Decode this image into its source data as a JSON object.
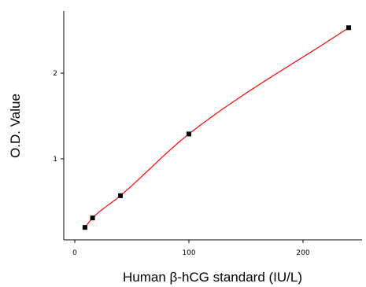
{
  "chart_data": {
    "type": "scatter",
    "title": "",
    "xlabel": "Human β-hCG standard (IU/L)",
    "ylabel": "O.D. Value",
    "xlim": [
      -10,
      250
    ],
    "ylim": [
      0,
      2.8
    ],
    "xticks": [
      0,
      100,
      200
    ],
    "xtick_labels": [
      "0",
      "100",
      "200"
    ],
    "yticks": [
      1,
      2
    ],
    "ytick_labels": [
      "1",
      "2"
    ],
    "grid": false,
    "series": [
      {
        "x": [
          8.9,
          15.6,
          40,
          100,
          240
        ],
        "y": [
          0.2,
          0.31,
          0.57,
          1.29,
          2.53
        ],
        "marker": "square",
        "color": "#000000"
      }
    ],
    "fit_curve": {
      "type": "smooth",
      "color": "#ff0000"
    }
  }
}
